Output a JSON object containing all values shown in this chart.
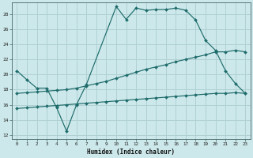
{
  "xlabel": "Humidex (Indice chaleur)",
  "bg_color": "#cce8ea",
  "grid_color": "#b0d0d4",
  "line_color": "#1e6b6b",
  "x_ticks": [
    0,
    1,
    2,
    3,
    4,
    5,
    6,
    7,
    8,
    9,
    10,
    11,
    12,
    13,
    14,
    15,
    16,
    17,
    18,
    19,
    20,
    21,
    22,
    23
  ],
  "y_ticks": [
    12,
    14,
    16,
    18,
    20,
    22,
    24,
    26,
    28
  ],
  "xlim": [
    -0.5,
    23.5
  ],
  "ylim": [
    11.5,
    29.5
  ],
  "line1_x": [
    0,
    1,
    2,
    3,
    4,
    5,
    6,
    7,
    10,
    11,
    12,
    13,
    14,
    15,
    16,
    17,
    18,
    19,
    20,
    21,
    22,
    23
  ],
  "line1_y": [
    20.5,
    19.3,
    18.2,
    18.2,
    15.6,
    12.5,
    16.0,
    18.7,
    29.0,
    27.3,
    28.8,
    28.5,
    28.6,
    28.6,
    28.8,
    28.5,
    27.2,
    24.5,
    23.2,
    20.5,
    18.8,
    17.5
  ],
  "line2_x": [
    0,
    1,
    2,
    3,
    4,
    5,
    6,
    7,
    8,
    9,
    10,
    11,
    12,
    13,
    14,
    15,
    16,
    17,
    18,
    19,
    20,
    21,
    22,
    23
  ],
  "line2_y": [
    17.5,
    17.6,
    17.7,
    17.8,
    17.9,
    18.0,
    18.2,
    18.5,
    18.8,
    19.1,
    19.5,
    19.9,
    20.3,
    20.7,
    21.0,
    21.3,
    21.7,
    22.0,
    22.3,
    22.6,
    23.0,
    23.0,
    23.2,
    23.0
  ],
  "line3_x": [
    0,
    1,
    2,
    3,
    4,
    5,
    6,
    7,
    8,
    9,
    10,
    11,
    12,
    13,
    14,
    15,
    16,
    17,
    18,
    19,
    20,
    21,
    22,
    23
  ],
  "line3_y": [
    15.5,
    15.6,
    15.7,
    15.8,
    15.9,
    16.0,
    16.1,
    16.2,
    16.3,
    16.4,
    16.5,
    16.6,
    16.7,
    16.8,
    16.9,
    17.0,
    17.1,
    17.2,
    17.3,
    17.4,
    17.5,
    17.5,
    17.6,
    17.5
  ]
}
